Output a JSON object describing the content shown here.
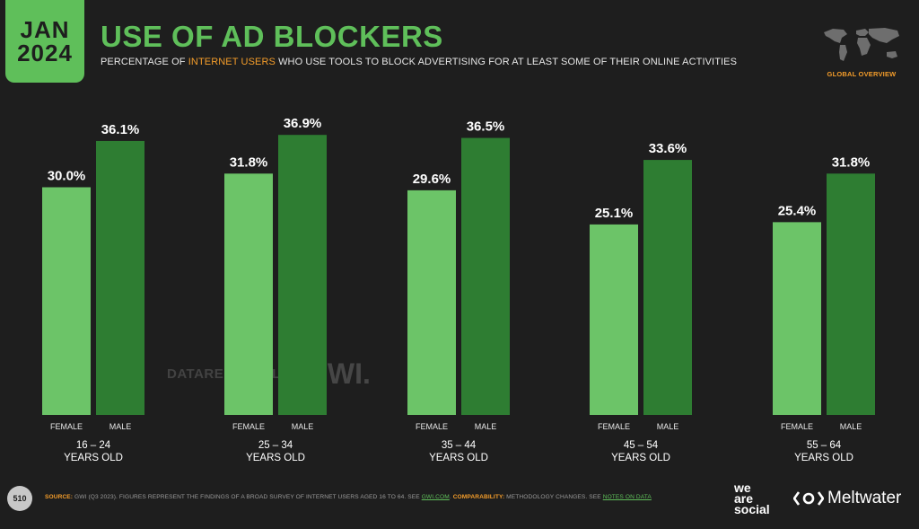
{
  "badge": {
    "month": "JAN",
    "year": "2024"
  },
  "title": "USE OF AD BLOCKERS",
  "subtitle": {
    "prefix": "PERCENTAGE OF ",
    "highlight": "INTERNET USERS",
    "suffix": " WHO USE TOOLS TO BLOCK ADVERTISING FOR AT LEAST SOME OF THEIR ONLINE ACTIVITIES"
  },
  "global_label": "GLOBAL OVERVIEW",
  "colors": {
    "female": "#6cc468",
    "male": "#2e7d32",
    "accent": "#5fbf5a",
    "orange": "#f39c2a"
  },
  "chart_data": {
    "type": "bar",
    "title": "USE OF AD BLOCKERS",
    "ylabel": "",
    "xlabel": "",
    "ylim": [
      0,
      40
    ],
    "legend": "none",
    "sub_categories": [
      "FEMALE",
      "MALE"
    ],
    "groups": [
      {
        "line1": "16 – 24",
        "line2": "YEARS OLD",
        "values": [
          30.0,
          36.1
        ],
        "labels": [
          "30.0%",
          "36.1%"
        ]
      },
      {
        "line1": "25 – 34",
        "line2": "YEARS OLD",
        "values": [
          31.8,
          36.9
        ],
        "labels": [
          "31.8%",
          "36.9%"
        ]
      },
      {
        "line1": "35 – 44",
        "line2": "YEARS OLD",
        "values": [
          29.6,
          36.5
        ],
        "labels": [
          "29.6%",
          "36.5%"
        ]
      },
      {
        "line1": "45 – 54",
        "line2": "YEARS OLD",
        "values": [
          25.1,
          33.6
        ],
        "labels": [
          "25.1%",
          "33.6%"
        ]
      },
      {
        "line1": "55 – 64",
        "line2": "YEARS OLD",
        "values": [
          25.4,
          31.8
        ],
        "labels": [
          "25.4%",
          "31.8%"
        ]
      }
    ]
  },
  "watermarks": {
    "datareportal": "DATAREPORTAL",
    "gwi": "GWI."
  },
  "footer": {
    "page_number": "510",
    "source_key": "SOURCE:",
    "source_text": " GWI (Q3 2023). FIGURES REPRESENT THE FINDINGS OF A BROAD SURVEY OF INTERNET USERS AGED 16 TO 64. SEE ",
    "source_link": "GWI.COM",
    "comparability_key": "COMPARABILITY:",
    "comparability_text": " METHODOLOGY CHANGES. SEE ",
    "notes_link": "NOTES ON DATA"
  },
  "logos": {
    "we": "we",
    "are": "are",
    "social": "social",
    "meltwater": "Meltwater"
  }
}
